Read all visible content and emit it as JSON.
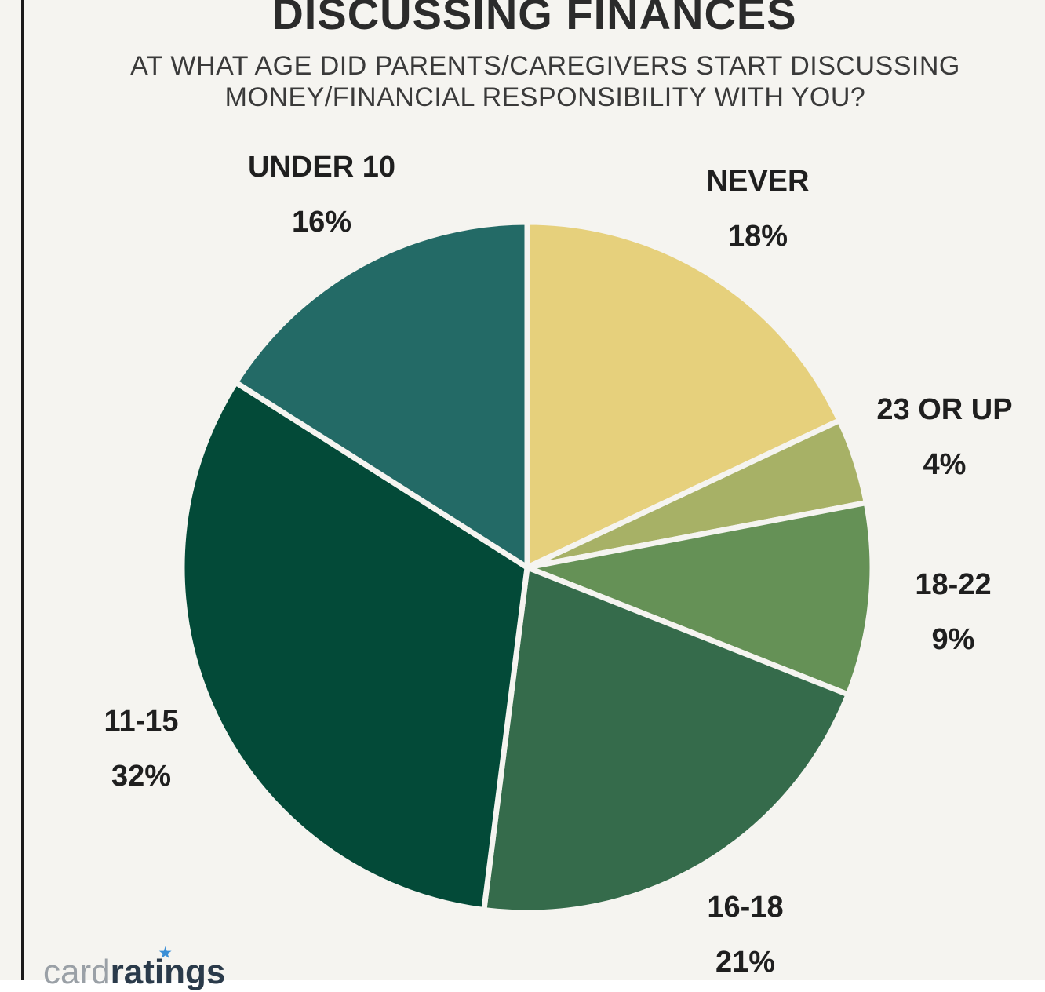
{
  "chart_data": {
    "type": "pie",
    "title": "DISCUSSING FINANCES",
    "subtitle_lines": [
      "AT WHAT AGE DID PARENTS/CAREGIVERS START DISCUSSING",
      "MONEY/FINANCIAL RESPONSIBILITY WITH YOU?"
    ],
    "slices": [
      {
        "label": "NEVER",
        "value": 18,
        "value_label": "18%",
        "color": "#e6d07c"
      },
      {
        "label": "23 OR UP",
        "value": 4,
        "value_label": "4%",
        "color": "#a7b166"
      },
      {
        "label": "18-22",
        "value": 9,
        "value_label": "9%",
        "color": "#659156"
      },
      {
        "label": "16-18",
        "value": 21,
        "value_label": "21%",
        "color": "#356b4b"
      },
      {
        "label": "11-15",
        "value": 32,
        "value_label": "32%",
        "color": "#034a38"
      },
      {
        "label": "UNDER 10",
        "value": 16,
        "value_label": "16%",
        "color": "#236a66"
      }
    ],
    "start_angle_deg": 0,
    "direction": "clockwise",
    "separator_color": "#f5f4f0"
  },
  "logo": {
    "text_light": "card",
    "text_bold": "ratings"
  }
}
